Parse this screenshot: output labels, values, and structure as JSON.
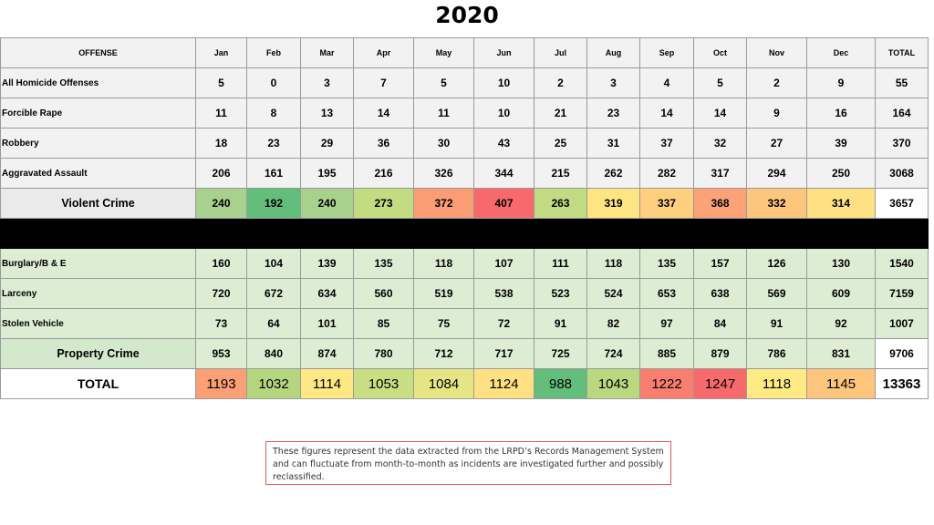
{
  "title": "2020",
  "headers": [
    "OFFENSE",
    "Jan",
    "Feb",
    "Mar",
    "Apr",
    "May",
    "Jun",
    "Jul",
    "Aug",
    "Sep",
    "Oct",
    "Nov",
    "Dec",
    "TOTAL"
  ],
  "violent_rows": [
    {
      "label": "All Homicide Offenses",
      "values": [
        "5",
        "0",
        "3",
        "7",
        "5",
        "10",
        "2",
        "3",
        "4",
        "5",
        "2",
        "9"
      ],
      "total": "55"
    },
    {
      "label": "Forcible Rape",
      "values": [
        "11",
        "8",
        "13",
        "14",
        "11",
        "10",
        "21",
        "23",
        "14",
        "14",
        "9",
        "16"
      ],
      "total": "164"
    },
    {
      "label": "Robbery",
      "values": [
        "18",
        "23",
        "29",
        "36",
        "30",
        "43",
        "25",
        "31",
        "37",
        "32",
        "27",
        "39"
      ],
      "total": "370"
    },
    {
      "label": "Aggravated Assault",
      "values": [
        "206",
        "161",
        "195",
        "216",
        "326",
        "344",
        "215",
        "262",
        "282",
        "317",
        "294",
        "250"
      ],
      "total": "3068"
    }
  ],
  "violent_total": {
    "label": "Violent Crime",
    "values": [
      "240",
      "192",
      "240",
      "273",
      "372",
      "407",
      "263",
      "319",
      "337",
      "368",
      "332",
      "314"
    ],
    "total": "3657",
    "colors": [
      "#a9d18e",
      "#63be7b",
      "#a9d18e",
      "#c3dc82",
      "#fa9d75",
      "#f8696b",
      "#c1db82",
      "#ffe484",
      "#ffcf80",
      "#fba276",
      "#fdc67d",
      "#ffe183"
    ]
  },
  "property_rows": [
    {
      "label": "Burglary/B & E",
      "values": [
        "160",
        "104",
        "139",
        "135",
        "118",
        "107",
        "111",
        "118",
        "135",
        "157",
        "126",
        "130"
      ],
      "total": "1540"
    },
    {
      "label": "Larceny",
      "values": [
        "720",
        "672",
        "634",
        "560",
        "519",
        "538",
        "523",
        "524",
        "653",
        "638",
        "569",
        "609"
      ],
      "total": "7159"
    },
    {
      "label": "Stolen Vehicle",
      "values": [
        "73",
        "64",
        "101",
        "85",
        "75",
        "72",
        "91",
        "82",
        "97",
        "84",
        "91",
        "92"
      ],
      "total": "1007"
    }
  ],
  "property_total": {
    "label": "Property Crime",
    "values": [
      "953",
      "840",
      "874",
      "780",
      "712",
      "717",
      "725",
      "724",
      "885",
      "879",
      "786",
      "831"
    ],
    "total": "9706"
  },
  "grand_total": {
    "label": "TOTAL",
    "values": [
      "1193",
      "1032",
      "1114",
      "1053",
      "1084",
      "1124",
      "988",
      "1043",
      "1222",
      "1247",
      "1118",
      "1145"
    ],
    "total": "13363",
    "colors": [
      "#fba075",
      "#b4d67f",
      "#ffe883",
      "#c7df82",
      "#e6e583",
      "#ffe082",
      "#63be7b",
      "#b9d880",
      "#f97e6f",
      "#f8696b",
      "#ffea84",
      "#fdc67c"
    ]
  },
  "note": "These figures represent the data extracted from the LRPD’s Records Management System and can fluctuate from month-to-month as incidents are investigated further and possibly reclassified."
}
